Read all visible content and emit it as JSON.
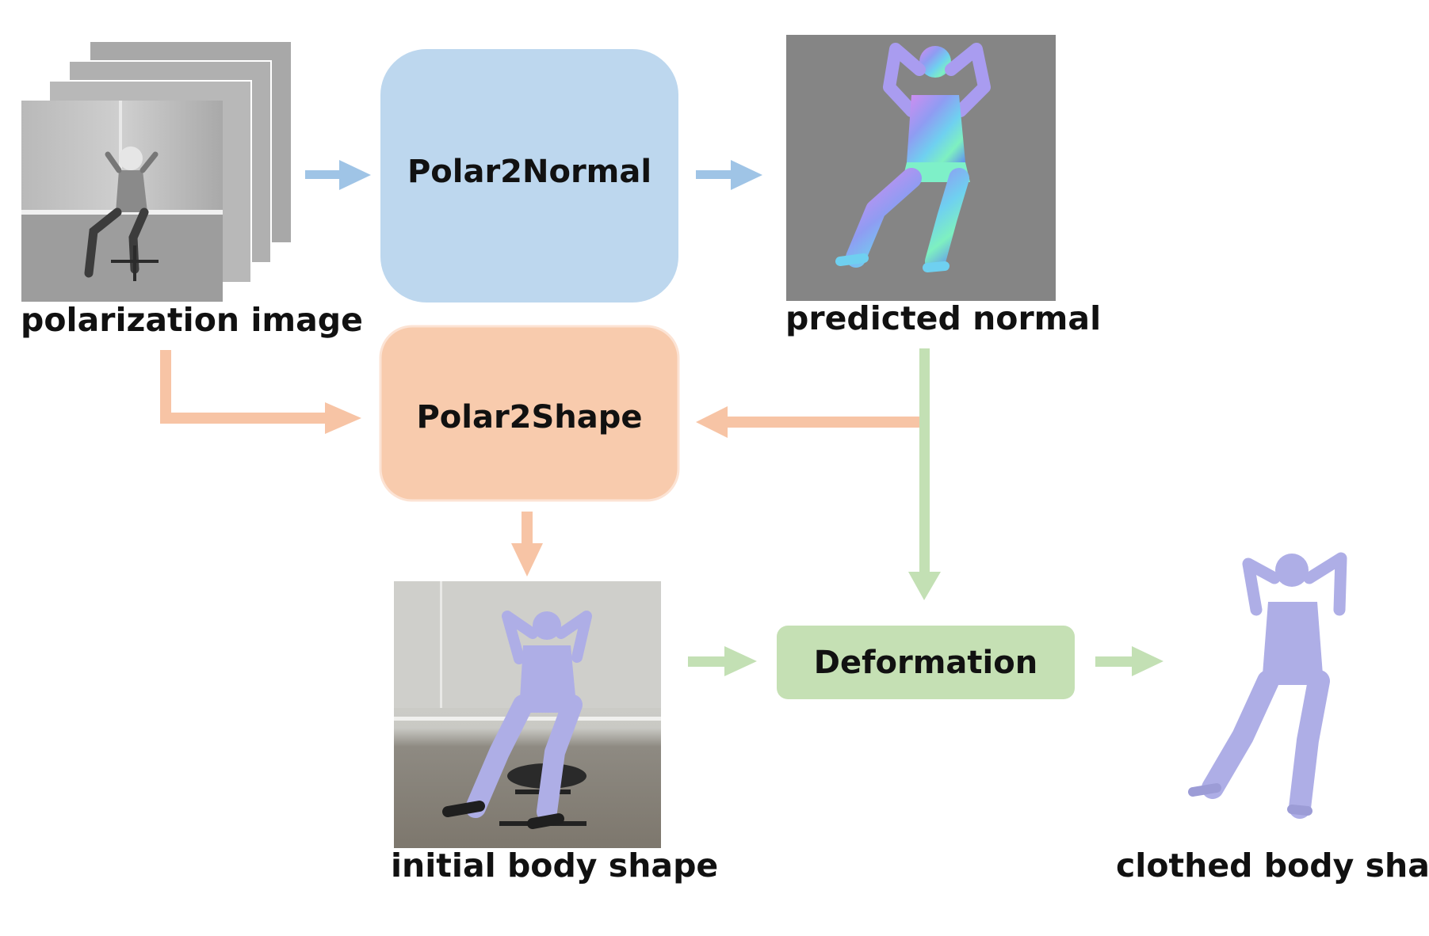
{
  "diagram": {
    "modules": {
      "polar2normal": "Polar2Normal",
      "polar2shape": "Polar2Shape",
      "deformation": "Deformation"
    },
    "captions": {
      "polarization_image": "polarization image",
      "predicted_normal": "predicted normal",
      "initial_body_shape": "initial body shape",
      "clothed_body_shape": "clothed body shape"
    },
    "colors": {
      "normal_branch": "#9fc4e6",
      "shape_branch": "#f7c4a5",
      "deformation_branch": "#c3e0b4",
      "polar2normal_fill": "#bdd7ee",
      "polar2shape_fill": "#f8cbad",
      "deformation_fill": "#c5e0b4",
      "body_mesh": "#aeaee6",
      "normal_map_background": "#858585"
    }
  }
}
